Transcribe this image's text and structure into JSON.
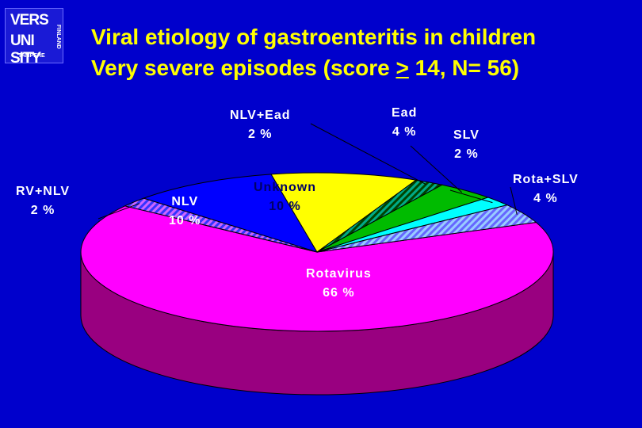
{
  "logo": {
    "line1": "VERS",
    "line2": "UNI SITY",
    "city": "TAMPERE",
    "country": "FINLAND"
  },
  "title": {
    "line1": "Viral etiology of gastroenteritis in children",
    "line2_a": "Very severe  episodes (score ",
    "line2_ge": ">",
    "line2_b": " 14, N= 56)"
  },
  "chart_data": {
    "type": "pie",
    "title": "Viral etiology of gastroenteritis in children Very severe  episodes (score > 14, N= 56)",
    "slices": [
      {
        "name": "Rotavirus",
        "label": "66 %",
        "value": 66,
        "color": "#ff00ff"
      },
      {
        "name": "RV+NLV",
        "label": "2 %",
        "value": 2,
        "color": "#cc66ff",
        "pattern": "hatch"
      },
      {
        "name": "NLV",
        "label": "10 %",
        "value": 10,
        "color": "#0000ff"
      },
      {
        "name": "Unknown",
        "label": "10 %",
        "value": 10,
        "color": "#ffff00"
      },
      {
        "name": "NLV+Ead",
        "label": "2 %",
        "value": 2,
        "color": "#008800",
        "pattern": "hatch"
      },
      {
        "name": "Ead",
        "label": "4 %",
        "value": 4,
        "color": "#00bb00"
      },
      {
        "name": "SLV",
        "label": "2 %",
        "value": 2,
        "color": "#00ffff"
      },
      {
        "name": "Rota+SLV",
        "label": "4 %",
        "value": 4,
        "color": "#99ccff",
        "pattern": "hatch"
      }
    ]
  }
}
